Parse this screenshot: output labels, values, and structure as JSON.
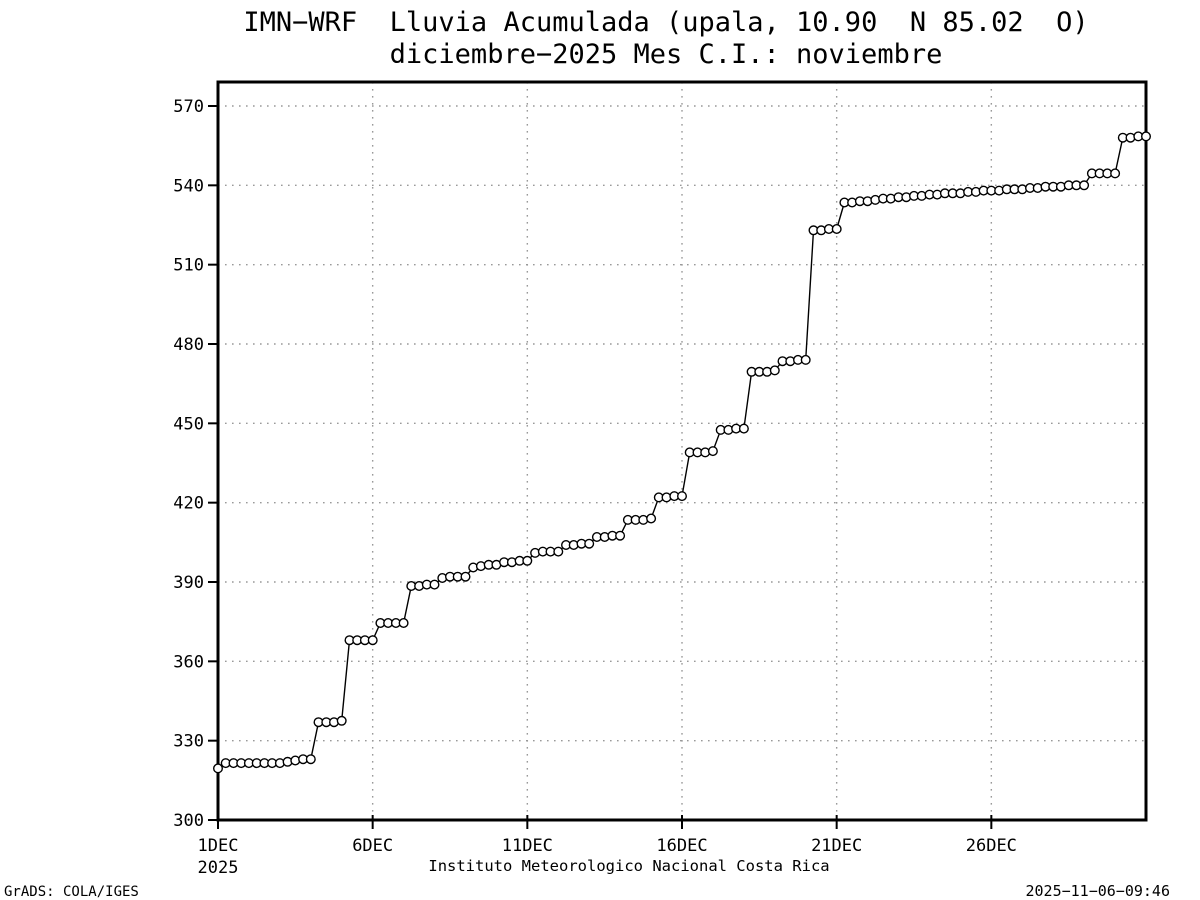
{
  "header": {
    "title_line1": "IMN−WRF  Lluvia Acumulada (upala, 10.90  N 85.02  O)",
    "title_line2": "diciembre−2025 Mes C.I.: noviembre"
  },
  "footer": {
    "caption": "Instituto Meteorologico Nacional Costa Rica",
    "credit": "GrADS: COLA/IGES",
    "timestamp": "2025−11−06−09:46"
  },
  "chart_data": {
    "type": "line",
    "marker": "circle",
    "title": "IMN-WRF Lluvia Acumulada (upala, 10.90 N 85.02 O) diciembre-2025 Mes C.I.: noviembre",
    "xlabel": "",
    "ylabel": "",
    "grid": "dotted",
    "legend": "none",
    "ylim": [
      300,
      570
    ],
    "y_ticks": [
      300,
      330,
      360,
      390,
      420,
      450,
      480,
      510,
      540,
      570
    ],
    "x_range_days": [
      0,
      30
    ],
    "x_ticks": [
      {
        "day": 0,
        "label": "1DEC",
        "sublabel": "2025"
      },
      {
        "day": 5,
        "label": "6DEC"
      },
      {
        "day": 10,
        "label": "11DEC"
      },
      {
        "day": 15,
        "label": "16DEC"
      },
      {
        "day": 20,
        "label": "21DEC"
      },
      {
        "day": 25,
        "label": "26DEC"
      }
    ],
    "x_gridline_days": [
      5,
      10,
      15,
      20,
      25
    ],
    "series": [
      {
        "name": "Lluvia Acumulada",
        "x_start_day": 0,
        "x_step_days": 0.25,
        "values": [
          319.5,
          321.5,
          321.5,
          321.5,
          321.5,
          321.5,
          321.5,
          321.5,
          321.5,
          322,
          322.5,
          323,
          323,
          337,
          337,
          337,
          337.5,
          368,
          368,
          368,
          368,
          374.5,
          374.5,
          374.5,
          374.5,
          388.5,
          388.5,
          389,
          389,
          391.5,
          392,
          392,
          392,
          395.5,
          396,
          396.5,
          396.5,
          397.5,
          397.5,
          398,
          398,
          401,
          401.5,
          401.5,
          401.5,
          404,
          404,
          404.5,
          404.5,
          407,
          407,
          407.5,
          407.5,
          413.5,
          413.5,
          413.5,
          414,
          422,
          422,
          422.5,
          422.5,
          439,
          439,
          439,
          439.5,
          447.5,
          447.5,
          448,
          448,
          469.5,
          469.5,
          469.5,
          470,
          473.5,
          473.5,
          474,
          474,
          523,
          523,
          523.5,
          523.5,
          533.5,
          533.5,
          534,
          534,
          534.5,
          535,
          535,
          535.5,
          535.5,
          536,
          536,
          536.5,
          536.5,
          537,
          537,
          537,
          537.5,
          537.5,
          538,
          538,
          538,
          538.5,
          538.5,
          538.5,
          539,
          539,
          539.5,
          539.5,
          539.5,
          540,
          540,
          540,
          544.5,
          544.5,
          544.5,
          544.5,
          558,
          558,
          558.5,
          558.5
        ]
      }
    ],
    "colors": {
      "line": "#000000",
      "marker_fill": "#ffffff",
      "grid": "#999999",
      "frame": "#000000",
      "background": "#ffffff",
      "text": "#000000"
    }
  }
}
